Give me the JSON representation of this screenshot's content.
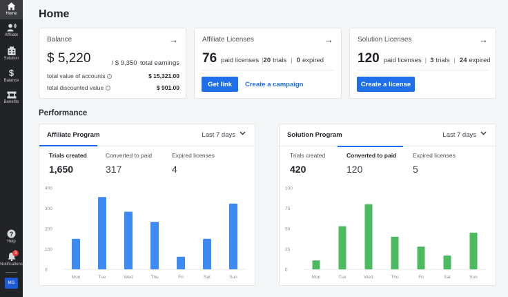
{
  "sidebar": {
    "items": [
      {
        "label": "Home",
        "icon": "home-icon"
      },
      {
        "label": "Affiliate",
        "icon": "megaphone-icon"
      },
      {
        "label": "Solution",
        "icon": "building-icon"
      },
      {
        "label": "Balance",
        "icon": "dollar-icon"
      },
      {
        "label": "Benefits",
        "icon": "ticket-icon"
      }
    ],
    "bottom": [
      {
        "label": "Help",
        "icon": "help-icon"
      },
      {
        "label": "Notifications",
        "icon": "bell-icon",
        "badge": "3"
      }
    ],
    "avatar": "MG"
  },
  "page": {
    "title": "Home"
  },
  "balance": {
    "title": "Balance",
    "amount": "$ 5,220",
    "total_prefix": "/ $ 9,350",
    "total_suffix": "total earnings",
    "rows": [
      {
        "label": "total value of accounts",
        "value": "$ 15,321.00"
      },
      {
        "label": "total discounted value",
        "value": "$ 901.00"
      }
    ]
  },
  "affiliate_licenses": {
    "title": "Affiliate Licenses",
    "count": "76",
    "paid_label": "paid licenses",
    "trials_count": "20",
    "trials_label": "trials",
    "expired_count": "0",
    "expired_label": "expired",
    "primary_button": "Get link",
    "secondary_link": "Create a campaign"
  },
  "solution_licenses": {
    "title": "Solution Licenses",
    "count": "120",
    "paid_label": "paid licenses",
    "trials_count": "3",
    "trials_label": "trials",
    "expired_count": "24",
    "expired_label": "expired",
    "primary_button": "Create a license"
  },
  "performance": {
    "title": "Performance",
    "affiliate": {
      "tab": "Affiliate Program",
      "range": "Last 7 days",
      "metrics": [
        {
          "label": "Trials created",
          "value": "1,650"
        },
        {
          "label": "Converted to paid",
          "value": "317"
        },
        {
          "label": "Expired licenses",
          "value": "4"
        }
      ]
    },
    "solution": {
      "tab": "Solution Program",
      "range": "Last 7 days",
      "metrics": [
        {
          "label": "Trials created",
          "value": "420"
        },
        {
          "label": "Converted to paid",
          "value": "120"
        },
        {
          "label": "Expired licenses",
          "value": "5"
        }
      ]
    }
  },
  "chart_data": [
    {
      "type": "bar",
      "categories": [
        "Mon",
        "Tue",
        "Wed",
        "Thu",
        "Fri",
        "Sat",
        "Sun"
      ],
      "values": [
        150,
        355,
        283,
        233,
        62,
        150,
        323
      ],
      "yticks": [
        0,
        100,
        200,
        300,
        400
      ],
      "ylim": [
        0,
        400
      ],
      "color": "#3d8bf2",
      "grid": false
    },
    {
      "type": "bar",
      "categories": [
        "Mon",
        "Tue",
        "Wed",
        "Thu",
        "Fri",
        "Sat",
        "Sun"
      ],
      "values": [
        11,
        53,
        80,
        40,
        28,
        17,
        45
      ],
      "yticks": [
        0,
        25,
        50,
        75,
        100
      ],
      "ylim": [
        0,
        100
      ],
      "color": "#4cbb5f",
      "grid": false
    }
  ]
}
